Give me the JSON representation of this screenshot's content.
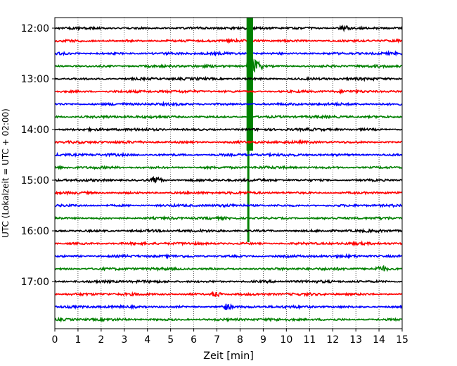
{
  "chart_data": {
    "type": "line",
    "title": "",
    "xlabel": "Zeit  [min]",
    "ylabel": "UTC (Lokalzeit = UTC + 02:00)",
    "xlim": [
      0,
      15
    ],
    "x_ticks": [
      "0",
      "1",
      "2",
      "3",
      "4",
      "5",
      "6",
      "7",
      "8",
      "9",
      "10",
      "11",
      "12",
      "13",
      "14",
      "15"
    ],
    "y_ticks": [
      "12:00",
      "13:00",
      "14:00",
      "15:00",
      "16:00",
      "17:00"
    ],
    "grid": "vertical dotted at each minute",
    "trace_start": "12:00",
    "trace_interval_min": 15,
    "trace_count": 24,
    "trace_color_cycle": [
      "#000000",
      "#ff0000",
      "#0000ff",
      "#008000"
    ],
    "events": [
      {
        "trace_time": "12:45",
        "minute_start": 8.28,
        "minute_end": 8.95,
        "color": "#008000",
        "description": "large seismic event with long vertical saturated spike"
      },
      {
        "trace_time": "15:00",
        "minute": 4.4,
        "color": "#000000"
      },
      {
        "trace_time": "12:00",
        "minute": 12.5,
        "color": "#000000"
      },
      {
        "trace_time": "16:45",
        "minute": 14.1,
        "color": "#008000"
      },
      {
        "trace_time": "17:15",
        "minute": 6.95,
        "color": "#ff0000"
      },
      {
        "trace_time": "17:30",
        "minute": 7.4,
        "color": "#0000ff"
      }
    ]
  }
}
